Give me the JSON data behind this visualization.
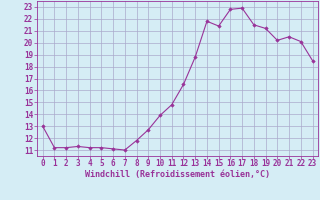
{
  "xlabel": "Windchill (Refroidissement éolien,°C)",
  "x_values": [
    0,
    1,
    2,
    3,
    4,
    5,
    6,
    7,
    8,
    9,
    10,
    11,
    12,
    13,
    14,
    15,
    16,
    17,
    18,
    19,
    20,
    21,
    22,
    23
  ],
  "y_values": [
    13,
    11.2,
    11.2,
    11.3,
    11.2,
    11.2,
    11.1,
    11.0,
    11.8,
    12.7,
    13.9,
    14.8,
    16.5,
    18.8,
    21.8,
    21.4,
    22.8,
    22.9,
    21.5,
    21.2,
    20.2,
    20.5,
    20.1,
    18.5
  ],
  "line_color": "#993399",
  "marker_color": "#993399",
  "bg_color": "#d5edf5",
  "grid_color": "#aaaacc",
  "ylim_min": 10.5,
  "ylim_max": 23.5,
  "xlim_min": -0.5,
  "xlim_max": 23.5,
  "yticks": [
    11,
    12,
    13,
    14,
    15,
    16,
    17,
    18,
    19,
    20,
    21,
    22,
    23
  ],
  "xticks": [
    0,
    1,
    2,
    3,
    4,
    5,
    6,
    7,
    8,
    9,
    10,
    11,
    12,
    13,
    14,
    15,
    16,
    17,
    18,
    19,
    20,
    21,
    22,
    23
  ],
  "xlabel_color": "#993399",
  "tick_color": "#993399",
  "font_name": "monospace",
  "tick_fontsize": 5.5,
  "xlabel_fontsize": 6.0
}
